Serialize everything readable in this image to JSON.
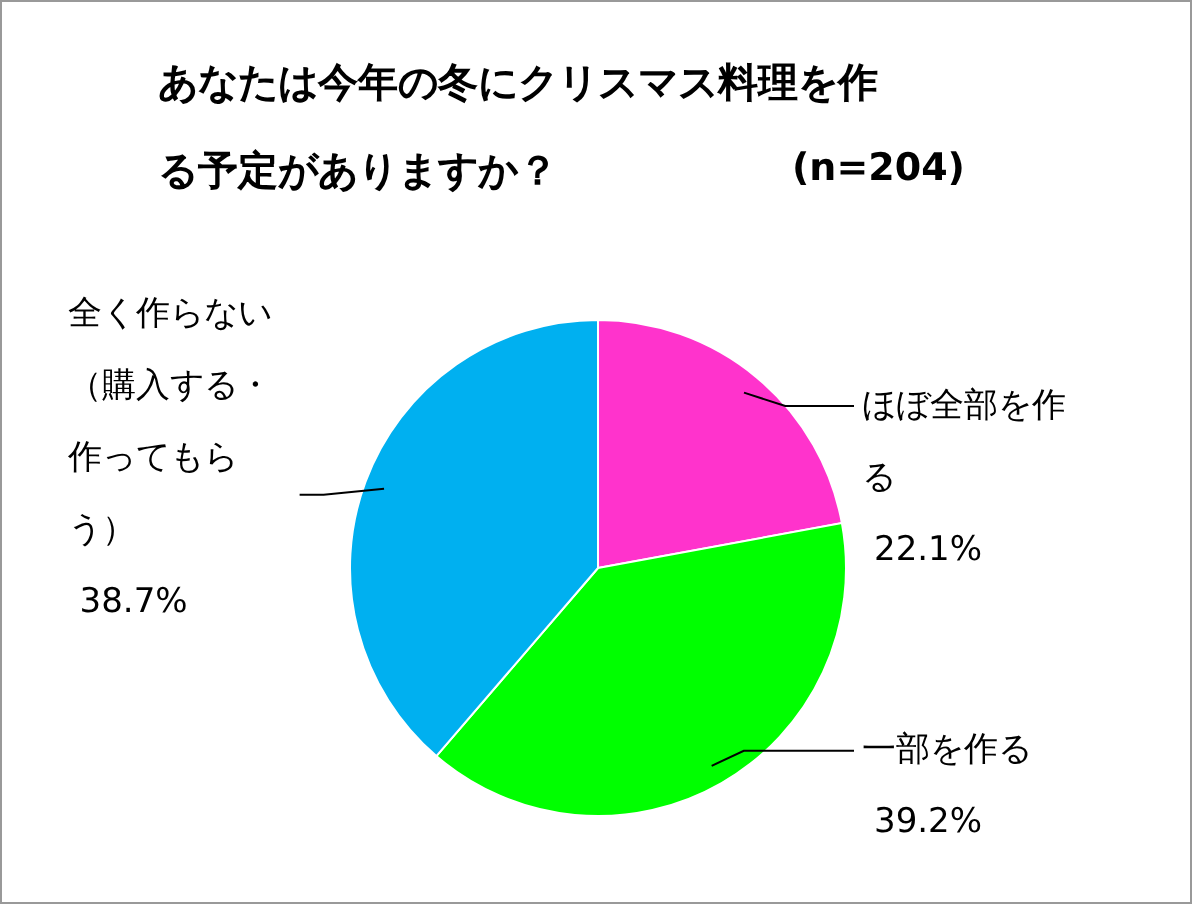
{
  "chart_data": {
    "type": "pie",
    "title": "あなたは今年の冬にクリスマス料理を作る予定がありますか？",
    "annotations": [
      "(n=204)"
    ],
    "categories": [
      "ほぼ全部を作る",
      "一部を作る",
      "全く作らない（購入する・作ってもらう）"
    ],
    "values": [
      22.1,
      39.2,
      38.7
    ],
    "value_labels": [
      "22.1%",
      "39.2%",
      "38.7%"
    ],
    "colors": [
      "#ff33cc",
      "#00ff00",
      "#00b0f0"
    ]
  }
}
